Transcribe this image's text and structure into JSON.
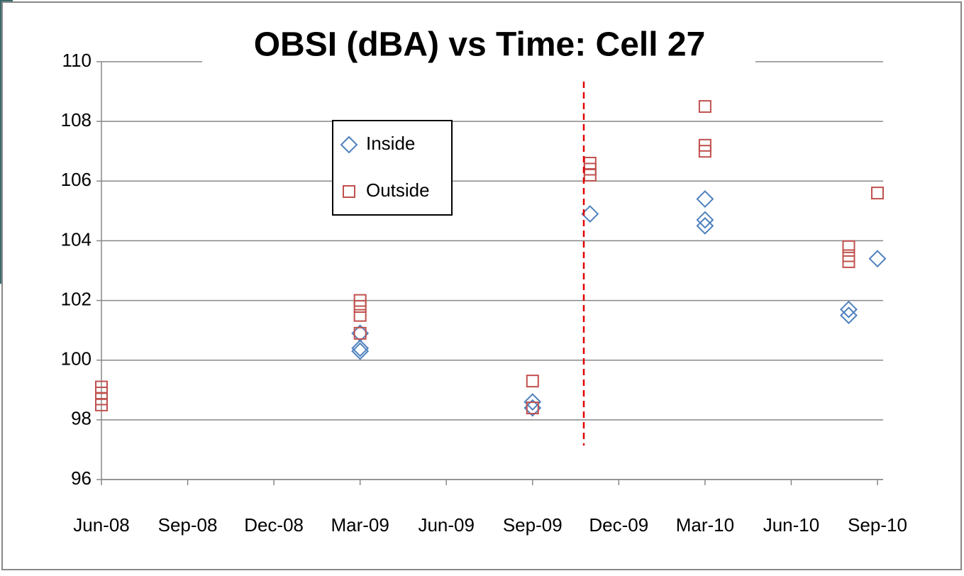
{
  "chart_data": {
    "type": "scatter",
    "title": "OBSI (dBA) vs Time: Cell 27",
    "xlim": [
      "2008-06",
      "2010-09"
    ],
    "xticks": [
      {
        "value": "2008-06",
        "label": "Jun-08"
      },
      {
        "value": "2008-09",
        "label": "Sep-08"
      },
      {
        "value": "2008-12",
        "label": "Dec-08"
      },
      {
        "value": "2009-03",
        "label": "Mar-09"
      },
      {
        "value": "2009-06",
        "label": "Jun-09"
      },
      {
        "value": "2009-09",
        "label": "Sep-09"
      },
      {
        "value": "2009-12",
        "label": "Dec-09"
      },
      {
        "value": "2010-03",
        "label": "Mar-10"
      },
      {
        "value": "2010-06",
        "label": "Jun-10"
      },
      {
        "value": "2010-09",
        "label": "Sep-10"
      }
    ],
    "ylim": [
      96,
      110
    ],
    "yticks": [
      96,
      98,
      100,
      102,
      104,
      106,
      108,
      110
    ],
    "grid": true,
    "legend": "upper-left",
    "series": [
      {
        "name": "Inside",
        "color": "#4f81bd",
        "marker": "diamond",
        "x": [
          "2009-03",
          "2009-03",
          "2009-03",
          "2009-09",
          "2009-09",
          "2009-11",
          "2010-03",
          "2010-03",
          "2010-03",
          "2010-08",
          "2010-08",
          "2010-09"
        ],
        "values": [
          100.9,
          100.4,
          100.3,
          98.6,
          98.4,
          104.9,
          105.4,
          104.7,
          104.5,
          101.7,
          101.5,
          103.4
        ]
      },
      {
        "name": "Outside",
        "color": "#c0504d",
        "marker": "square",
        "x": [
          "2008-06",
          "2008-06",
          "2008-06",
          "2008-06",
          "2009-03",
          "2009-03",
          "2009-03",
          "2009-03",
          "2009-09",
          "2009-09",
          "2009-11",
          "2009-11",
          "2009-11",
          "2010-03",
          "2010-03",
          "2010-03",
          "2010-08",
          "2010-08",
          "2010-08",
          "2010-09"
        ],
        "values": [
          99.1,
          98.9,
          98.7,
          98.5,
          102.0,
          101.8,
          101.5,
          100.9,
          99.3,
          98.4,
          106.6,
          106.4,
          106.2,
          108.5,
          107.2,
          107.0,
          103.8,
          103.5,
          103.3,
          105.6
        ]
      }
    ]
  }
}
